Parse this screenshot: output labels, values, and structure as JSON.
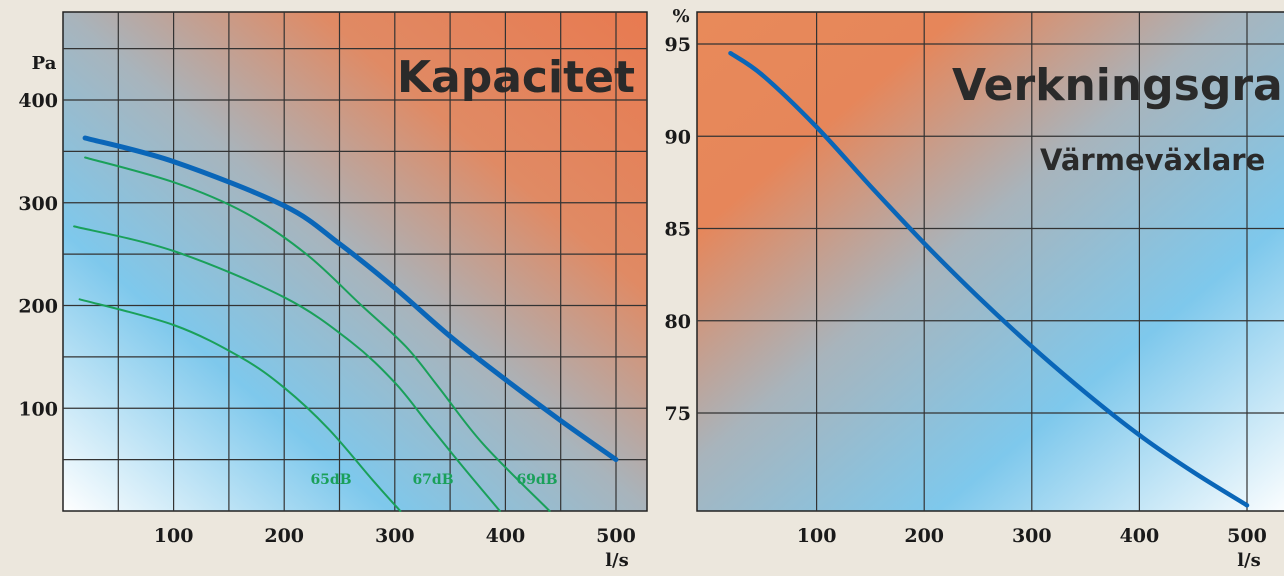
{
  "chart_data": [
    {
      "type": "line",
      "title": "Kapacitet",
      "xlabel": "l/s",
      "ylabel": "Pa",
      "xlim": [
        0,
        500
      ],
      "ylim": [
        0,
        450
      ],
      "x_ticks": [
        "100",
        "200",
        "300",
        "400",
        "500"
      ],
      "y_ticks": [
        "100",
        "200",
        "300",
        "400"
      ],
      "grid": true,
      "colors": {
        "main": "#0a66b8",
        "noise": "#1aa05a"
      },
      "series": [
        {
          "points": [
            [
              20,
              363
            ],
            [
              100,
              340
            ],
            [
              200,
              297
            ],
            [
              250,
              260
            ],
            [
              300,
              217
            ],
            [
              350,
              170
            ],
            [
              400,
              128
            ],
            [
              450,
              88
            ],
            [
              500,
              50
            ]
          ]
        },
        {
          "points": [
            [
              20,
              344
            ],
            [
              100,
              320
            ],
            [
              165,
              290
            ],
            [
              220,
              250
            ],
            [
              270,
              200
            ],
            [
              310,
              160
            ],
            [
              340,
              120
            ],
            [
              380,
              65
            ],
            [
              440,
              0
            ]
          ]
        },
        {
          "points": [
            [
              10,
              277
            ],
            [
              100,
              253
            ],
            [
              200,
              208
            ],
            [
              260,
              165
            ],
            [
              300,
              125
            ],
            [
              330,
              85
            ],
            [
              360,
              45
            ],
            [
              395,
              0
            ]
          ]
        },
        {
          "points": [
            [
              15,
              206
            ],
            [
              100,
              181
            ],
            [
              160,
              150
            ],
            [
              200,
              120
            ],
            [
              240,
              80
            ],
            [
              280,
              30
            ],
            [
              305,
              0
            ]
          ]
        }
      ],
      "annotations": [
        "65dB",
        "67dB",
        "69dB"
      ]
    },
    {
      "type": "line",
      "title": "Verkningsgrad",
      "subtitle": "Värmeväxlare",
      "xlabel": "l/s",
      "ylabel": "%",
      "xlim": [
        0,
        500
      ],
      "ylim": [
        70,
        96
      ],
      "x_ticks": [
        "100",
        "200",
        "300",
        "400",
        "500"
      ],
      "y_ticks": [
        "75",
        "80",
        "85",
        "90",
        "95"
      ],
      "grid": true,
      "colors": {
        "main": "#0a66b8"
      },
      "series": [
        {
          "points": [
            [
              20,
              94.5
            ],
            [
              50,
              93.3
            ],
            [
              100,
              90.5
            ],
            [
              150,
              87.3
            ],
            [
              200,
              84.2
            ],
            [
              250,
              81.3
            ],
            [
              300,
              78.6
            ],
            [
              350,
              76.1
            ],
            [
              400,
              73.8
            ],
            [
              450,
              71.8
            ],
            [
              500,
              70
            ]
          ]
        }
      ]
    }
  ]
}
